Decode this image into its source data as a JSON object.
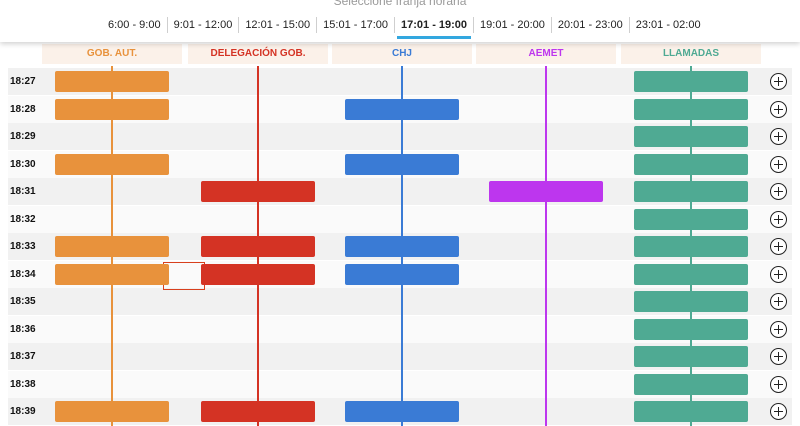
{
  "header": {
    "title": "Seleccione franja horaria",
    "slots": [
      {
        "label": "6:00 - 9:00"
      },
      {
        "label": "9:01 - 12:00"
      },
      {
        "label": "12:01 - 15:00"
      },
      {
        "label": "15:01 - 17:00"
      },
      {
        "label": "17:01 - 19:00",
        "active": true
      },
      {
        "label": "19:01 - 20:00"
      },
      {
        "label": "20:01 - 23:00"
      },
      {
        "label": "23:01 - 02:00"
      }
    ]
  },
  "columns": [
    {
      "key": "gob",
      "label": "GOB. AUT.",
      "color": "#e8923c"
    },
    {
      "key": "del",
      "label": "DELEGACIÓN GOB.",
      "color": "#d43324"
    },
    {
      "key": "chj",
      "label": "CHJ",
      "color": "#3a7bd5"
    },
    {
      "key": "aemet",
      "label": "AEMET",
      "color": "#bd36ee"
    },
    {
      "key": "llamadas",
      "label": "LLAMADAS",
      "color": "#4faa93"
    }
  ],
  "rows": [
    {
      "time": "18:27",
      "events": [
        "gob",
        "llamadas"
      ]
    },
    {
      "time": "18:28",
      "events": [
        "gob",
        "chj",
        "llamadas"
      ]
    },
    {
      "time": "18:29",
      "events": [
        "llamadas"
      ]
    },
    {
      "time": "18:30",
      "events": [
        "gob",
        "chj",
        "llamadas"
      ]
    },
    {
      "time": "18:31",
      "events": [
        "del",
        "aemet",
        "llamadas"
      ]
    },
    {
      "time": "18:32",
      "events": [
        "llamadas"
      ]
    },
    {
      "time": "18:33",
      "events": [
        "gob",
        "del",
        "chj",
        "llamadas"
      ]
    },
    {
      "time": "18:34",
      "events": [
        "gob",
        "del",
        "chj",
        "llamadas"
      ]
    },
    {
      "time": "18:35",
      "events": [
        "llamadas"
      ]
    },
    {
      "time": "18:36",
      "events": [
        "llamadas"
      ]
    },
    {
      "time": "18:37",
      "events": [
        "llamadas"
      ]
    },
    {
      "time": "18:38",
      "events": [
        "llamadas"
      ]
    },
    {
      "time": "18:39",
      "events": [
        "gob",
        "del",
        "chj",
        "llamadas"
      ]
    }
  ],
  "icons": {
    "expand": "plus-circle-icon"
  }
}
